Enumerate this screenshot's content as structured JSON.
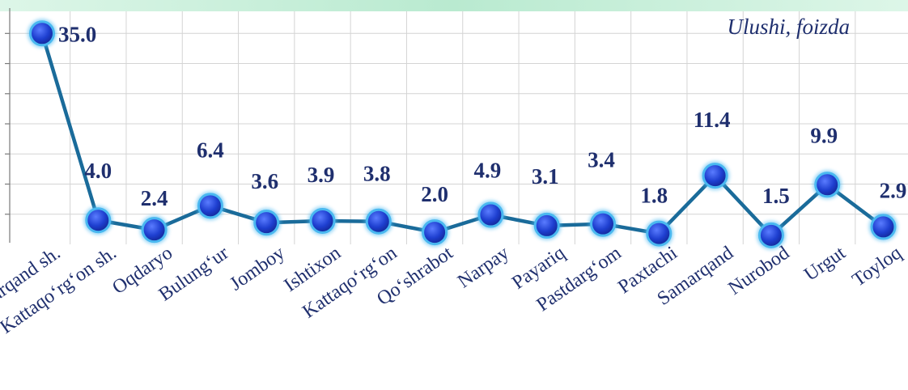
{
  "chart_data": {
    "type": "line",
    "unit_label": "Ulushi, foizda",
    "categories": [
      "Samarqand sh.",
      "Kattaqo‘rg‘on sh.",
      "Oqdaryo",
      "Bulung‘ur",
      "Jomboy",
      "Ishtixon",
      "Kattaqo‘rg‘on",
      "Qo‘shrabot",
      "Narpay",
      "Payariq",
      "Pastdarg‘om",
      "Paxtachi",
      "Samarqand",
      "Nurobod",
      "Urgut",
      "Toyloq"
    ],
    "series": [
      {
        "values": [
          35.0,
          4.0,
          2.4,
          6.4,
          3.6,
          3.9,
          3.8,
          2.0,
          4.9,
          3.1,
          3.4,
          1.8,
          11.4,
          1.5,
          9.9,
          2.9
        ]
      }
    ],
    "data_labels": [
      "35.0",
      "4.0",
      "2.4",
      "6.4",
      "3.6",
      "3.9",
      "3.8",
      "2.0",
      "4.9",
      "3.1",
      "3.4",
      "1.8",
      "11.4",
      "1.5",
      "9.9",
      "2.9"
    ],
    "ylim": [
      0,
      40
    ],
    "grid": true,
    "colors": {
      "line": "#1a6b9a",
      "marker": "#1e3fd0",
      "marker_ring": "#4ab8f0",
      "grid": "#d4d4d4",
      "text": "#1f2f6e",
      "top_band": "#c8efd9"
    }
  }
}
